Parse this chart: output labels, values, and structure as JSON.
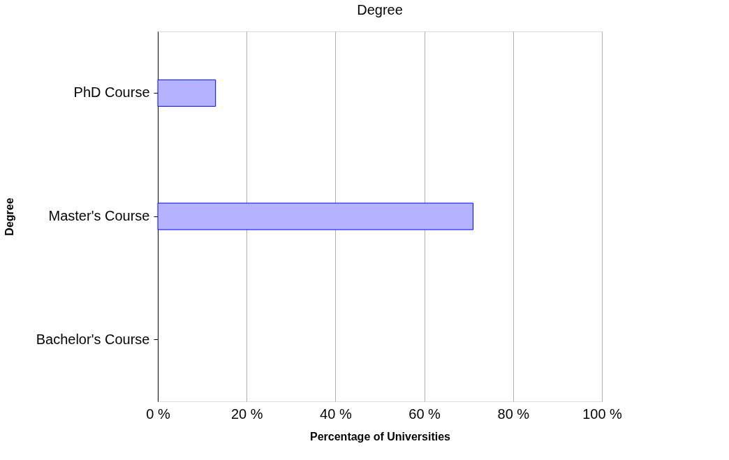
{
  "chart_data": {
    "type": "bar",
    "orientation": "horizontal",
    "title": "Degree",
    "xlabel": "Percentage of Universities",
    "ylabel": "Degree",
    "categories": [
      "PhD Course",
      "Master's Course",
      "Bachelor's Course"
    ],
    "series": [
      {
        "color": "#b3b3ff",
        "values": [
          13,
          71,
          0
        ]
      }
    ],
    "xlim": [
      0,
      100
    ],
    "xticks": [
      {
        "value": 0,
        "label": "0 %"
      },
      {
        "value": 20,
        "label": "20 %"
      },
      {
        "value": 40,
        "label": "40 %"
      },
      {
        "value": 60,
        "label": "60 %"
      },
      {
        "value": 80,
        "label": "80 %"
      },
      {
        "value": 100,
        "label": "100 %"
      }
    ],
    "grid": "x",
    "legend": false
  }
}
